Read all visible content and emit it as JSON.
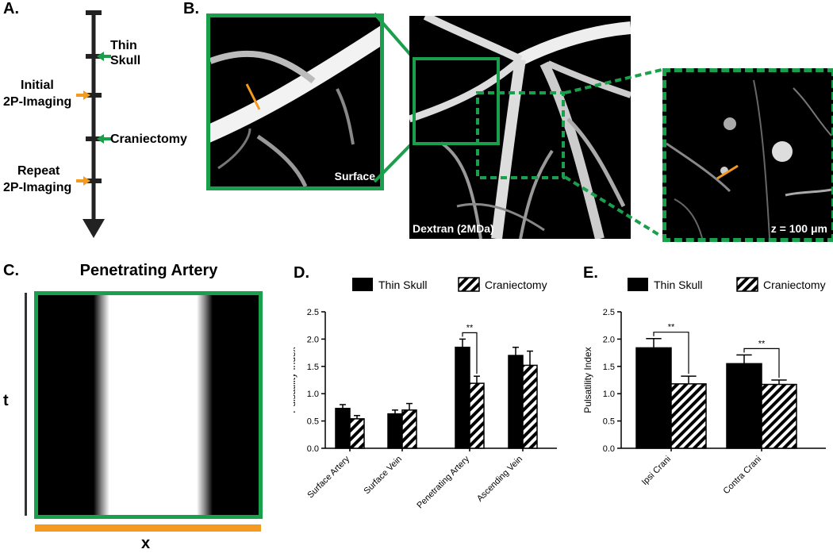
{
  "panels": {
    "a": "A.",
    "b": "B.",
    "c": "C.",
    "d": "D.",
    "e": "E."
  },
  "timeline": {
    "events": [
      "Thin Skull",
      "Initial 2P-Imaging",
      "Craniectomy",
      "Repeat 2P-Imaging"
    ],
    "labels": {
      "thin_skull_1": "Thin",
      "thin_skull_2": "Skull",
      "initial_1": "Initial",
      "initial_2": "2P-Imaging",
      "craniectomy": "Craniectomy",
      "repeat_1": "Repeat",
      "repeat_2": "2P-Imaging"
    },
    "colors": {
      "green": "#1a9e4a",
      "orange": "#f39a1f"
    }
  },
  "microscopy": {
    "surface_label": "Surface",
    "dextran_label": "Dextran (2MDa)",
    "depth_label": "z = 100 μm",
    "frame_color": "#1aa04c",
    "line_color": "#f39a1f"
  },
  "linescan": {
    "title": "Penetrating Artery",
    "t_label": "t",
    "x_label": "x",
    "frame_color": "#1aa04c",
    "bar_color": "#f39a1f"
  },
  "chart_data": [
    {
      "panel": "D",
      "type": "bar",
      "ylabel": "Pulsatility Index",
      "ylim": [
        0,
        2.5
      ],
      "yticks": [
        "0.0",
        "0.5",
        "1.0",
        "1.5",
        "2.0",
        "2.5"
      ],
      "categories": [
        "Surface Artery",
        "Surface Vein",
        "Penetrating Artery",
        "Ascending Vein"
      ],
      "series": [
        {
          "name": "Thin Skull",
          "values": [
            0.73,
            0.63,
            1.85,
            1.7
          ],
          "errors": [
            0.07,
            0.07,
            0.15,
            0.15
          ]
        },
        {
          "name": "Craniectomy",
          "values": [
            0.54,
            0.7,
            1.19,
            1.52
          ],
          "errors": [
            0.06,
            0.12,
            0.13,
            0.26
          ]
        }
      ],
      "annotations": [
        {
          "category": "Penetrating Artery",
          "text": "**"
        }
      ]
    },
    {
      "panel": "E",
      "type": "bar",
      "ylabel": "Pulsatility Index",
      "ylim": [
        0,
        2.5
      ],
      "yticks": [
        "0.0",
        "0.5",
        "1.0",
        "1.5",
        "2.0",
        "2.5"
      ],
      "categories": [
        "Ipsi Crani",
        "Contra Crani"
      ],
      "series": [
        {
          "name": "Thin Skull",
          "values": [
            1.84,
            1.55
          ],
          "errors": [
            0.17,
            0.16
          ]
        },
        {
          "name": "Craniectomy",
          "values": [
            1.18,
            1.17
          ],
          "errors": [
            0.14,
            0.08
          ]
        }
      ],
      "annotations": [
        {
          "category": "Ipsi Crani",
          "text": "**"
        },
        {
          "category": "Contra Crani",
          "text": "**"
        }
      ]
    }
  ]
}
